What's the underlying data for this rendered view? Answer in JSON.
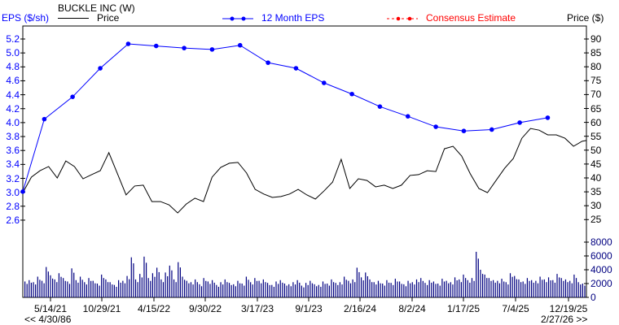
{
  "chart_data": {
    "type": "line",
    "title": "BUCKLE INC (W)",
    "ylabel_left": "EPS ($/sh)",
    "ylabel_right": "Price ($)",
    "legend": {
      "price": "Price",
      "eps": "12 Month EPS",
      "consensus": "Consensus Estimate"
    },
    "colors": {
      "price": "#000000",
      "eps": "#0000ff",
      "consensus": "#ff0000",
      "volume": "#000080",
      "frame": "#000000"
    },
    "xlim": [
      "2021-02-12",
      "2026-02-20"
    ],
    "x_ticks": [
      "5/14/21",
      "10/29/21",
      "4/15/22",
      "9/30/22",
      "3/17/23",
      "9/1/23",
      "2/16/24",
      "8/2/24",
      "1/17/25",
      "7/4/25",
      "12/19/25"
    ],
    "range_start_label": "<< 4/30/86",
    "range_end_label": "2/27/26 >>",
    "eps_axis": {
      "ylim": [
        2.6,
        5.2
      ],
      "ticks": [
        "5.2",
        "5.0",
        "4.8",
        "4.6",
        "4.4",
        "4.2",
        "4.0",
        "3.8",
        "3.6",
        "3.4",
        "3.2",
        "3.0",
        "2.8",
        "2.6"
      ]
    },
    "price_axis": {
      "ylim": [
        25,
        90
      ],
      "ticks": [
        "90",
        "85",
        "80",
        "75",
        "70",
        "65",
        "60",
        "55",
        "50",
        "45",
        "40",
        "35",
        "30",
        "25"
      ]
    },
    "volume_axis": {
      "ylim": [
        0,
        8000
      ],
      "ticks": [
        "8000",
        "6000",
        "4000",
        "2000",
        "0"
      ]
    },
    "eps": [
      [
        "2021-02-12",
        3.01
      ],
      [
        "2021-04-23",
        4.05
      ],
      [
        "2021-07-24",
        4.37
      ],
      [
        "2021-10-22",
        4.78
      ],
      [
        "2022-01-21",
        5.13
      ],
      [
        "2022-04-22",
        5.1
      ],
      [
        "2022-07-22",
        5.07
      ],
      [
        "2022-10-21",
        5.05
      ],
      [
        "2023-01-20",
        5.11
      ],
      [
        "2023-04-21",
        4.86
      ],
      [
        "2023-07-21",
        4.78
      ],
      [
        "2023-10-20",
        4.57
      ],
      [
        "2024-01-19",
        4.41
      ],
      [
        "2024-04-19",
        4.23
      ],
      [
        "2024-07-19",
        4.09
      ],
      [
        "2024-10-18",
        3.94
      ],
      [
        "2025-01-17",
        3.88
      ],
      [
        "2025-04-18",
        3.9
      ],
      [
        "2025-07-18",
        4.0
      ],
      [
        "2025-10-17",
        4.07
      ]
    ],
    "price": [
      [
        "2021-02-12",
        34.7
      ],
      [
        "2021-03-12",
        40.3
      ],
      [
        "2021-04-09",
        42.6
      ],
      [
        "2021-05-07",
        44.1
      ],
      [
        "2021-06-04",
        40.0
      ],
      [
        "2021-07-02",
        46.1
      ],
      [
        "2021-07-30",
        44.1
      ],
      [
        "2021-08-27",
        39.7
      ],
      [
        "2021-09-24",
        41.2
      ],
      [
        "2021-10-22",
        42.6
      ],
      [
        "2021-11-19",
        49.1
      ],
      [
        "2021-12-17",
        41.5
      ],
      [
        "2022-01-14",
        33.9
      ],
      [
        "2022-02-11",
        37.1
      ],
      [
        "2022-03-11",
        37.4
      ],
      [
        "2022-04-08",
        31.5
      ],
      [
        "2022-05-06",
        31.5
      ],
      [
        "2022-06-03",
        30.3
      ],
      [
        "2022-07-01",
        27.4
      ],
      [
        "2022-07-29",
        30.6
      ],
      [
        "2022-08-26",
        32.7
      ],
      [
        "2022-09-23",
        31.5
      ],
      [
        "2022-10-21",
        40.3
      ],
      [
        "2022-11-18",
        43.8
      ],
      [
        "2022-12-16",
        45.3
      ],
      [
        "2023-01-13",
        45.6
      ],
      [
        "2023-02-10",
        41.8
      ],
      [
        "2023-03-10",
        35.9
      ],
      [
        "2023-04-07",
        34.2
      ],
      [
        "2023-05-05",
        33.0
      ],
      [
        "2023-06-02",
        33.3
      ],
      [
        "2023-06-30",
        34.2
      ],
      [
        "2023-07-28",
        35.9
      ],
      [
        "2023-08-25",
        33.9
      ],
      [
        "2023-09-22",
        32.4
      ],
      [
        "2023-10-20",
        35.3
      ],
      [
        "2023-11-17",
        38.5
      ],
      [
        "2023-12-15",
        46.7
      ],
      [
        "2024-01-12",
        36.2
      ],
      [
        "2024-02-09",
        39.7
      ],
      [
        "2024-03-08",
        39.1
      ],
      [
        "2024-04-05",
        36.8
      ],
      [
        "2024-05-03",
        37.4
      ],
      [
        "2024-05-31",
        36.2
      ],
      [
        "2024-06-28",
        37.4
      ],
      [
        "2024-07-26",
        40.9
      ],
      [
        "2024-08-23",
        41.2
      ],
      [
        "2024-09-20",
        42.6
      ],
      [
        "2024-10-18",
        42.3
      ],
      [
        "2024-11-15",
        50.5
      ],
      [
        "2024-12-13",
        51.4
      ],
      [
        "2025-01-10",
        47.9
      ],
      [
        "2025-02-07",
        41.5
      ],
      [
        "2025-03-07",
        36.2
      ],
      [
        "2025-04-04",
        34.7
      ],
      [
        "2025-05-02",
        39.1
      ],
      [
        "2025-05-30",
        43.5
      ],
      [
        "2025-06-27",
        47.0
      ],
      [
        "2025-07-25",
        54.3
      ],
      [
        "2025-08-22",
        57.8
      ],
      [
        "2025-09-19",
        57.2
      ],
      [
        "2025-10-17",
        55.5
      ],
      [
        "2025-11-14",
        55.5
      ],
      [
        "2025-12-12",
        54.3
      ],
      [
        "2026-01-09",
        51.4
      ],
      [
        "2026-02-06",
        53.2
      ],
      [
        "2026-02-20",
        53.5
      ]
    ],
    "volume": [
      2300,
      2500,
      2200,
      3000,
      2400,
      4400,
      3200,
      2600,
      3500,
      2800,
      2300,
      4200,
      2500,
      3000,
      2200,
      2800,
      2400,
      2000,
      3300,
      2600,
      2200,
      1800,
      2500,
      2400,
      3100,
      5800,
      2600,
      3400,
      5900,
      2800,
      3500,
      4300,
      2600,
      3600,
      4600,
      2600,
      5100,
      3000,
      2400,
      2200,
      2600,
      1900,
      2800,
      2300,
      2500,
      1800,
      2200,
      2600,
      2100,
      1900,
      2400,
      2000,
      3000,
      2200,
      2800,
      2400,
      2600,
      2100,
      1800,
      2300,
      2500,
      2000,
      1900,
      2200,
      2500,
      1700,
      2100,
      2400,
      1900,
      1800,
      2300,
      2000,
      2600,
      2100,
      2200,
      3000,
      2400,
      2600,
      4300,
      2900,
      3600,
      2600,
      2200,
      2400,
      2000,
      2500,
      2100,
      2700,
      2300,
      1900,
      2400,
      2200,
      2600,
      2800,
      2100,
      2500,
      2300,
      2000,
      2700,
      2400,
      2200,
      2900,
      2600,
      3300,
      2500,
      2800,
      6600,
      4000,
      3300,
      2800,
      2500,
      2400,
      2700,
      2200,
      3500,
      3100,
      2600,
      2300,
      2800,
      2500,
      2400,
      3000,
      2600,
      2900,
      2500,
      3400,
      2800,
      2600,
      2400,
      3300,
      2200,
      2000
    ]
  }
}
